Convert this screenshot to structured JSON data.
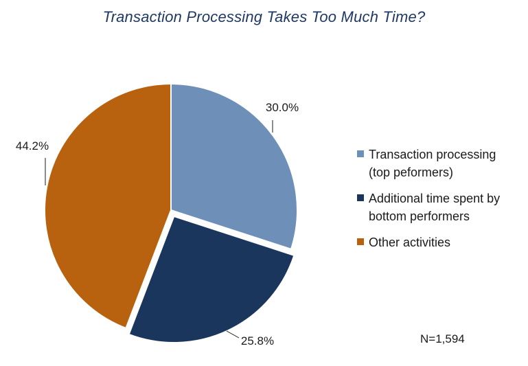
{
  "chart_data": {
    "type": "pie",
    "title": "Transaction Processing Takes Too Much Time?",
    "slices": [
      {
        "label": "Transaction processing (top peformers)",
        "legend_lines": [
          "Transaction processing",
          "(top peformers)"
        ],
        "value": 30.0,
        "value_label": "30.0%",
        "color": "#6e8fb8",
        "exploded": false
      },
      {
        "label": "Additional time spent by bottom performers",
        "legend_lines": [
          "Additional time spent by",
          "bottom performers"
        ],
        "value": 25.8,
        "value_label": "25.8%",
        "color": "#1b365d",
        "exploded": true
      },
      {
        "label": "Other activities",
        "legend_lines": [
          "Other activities"
        ],
        "value": 44.2,
        "value_label": "44.2%",
        "color": "#b8620f",
        "exploded": false
      }
    ],
    "legend_position": "right",
    "note": "N=1,594"
  }
}
